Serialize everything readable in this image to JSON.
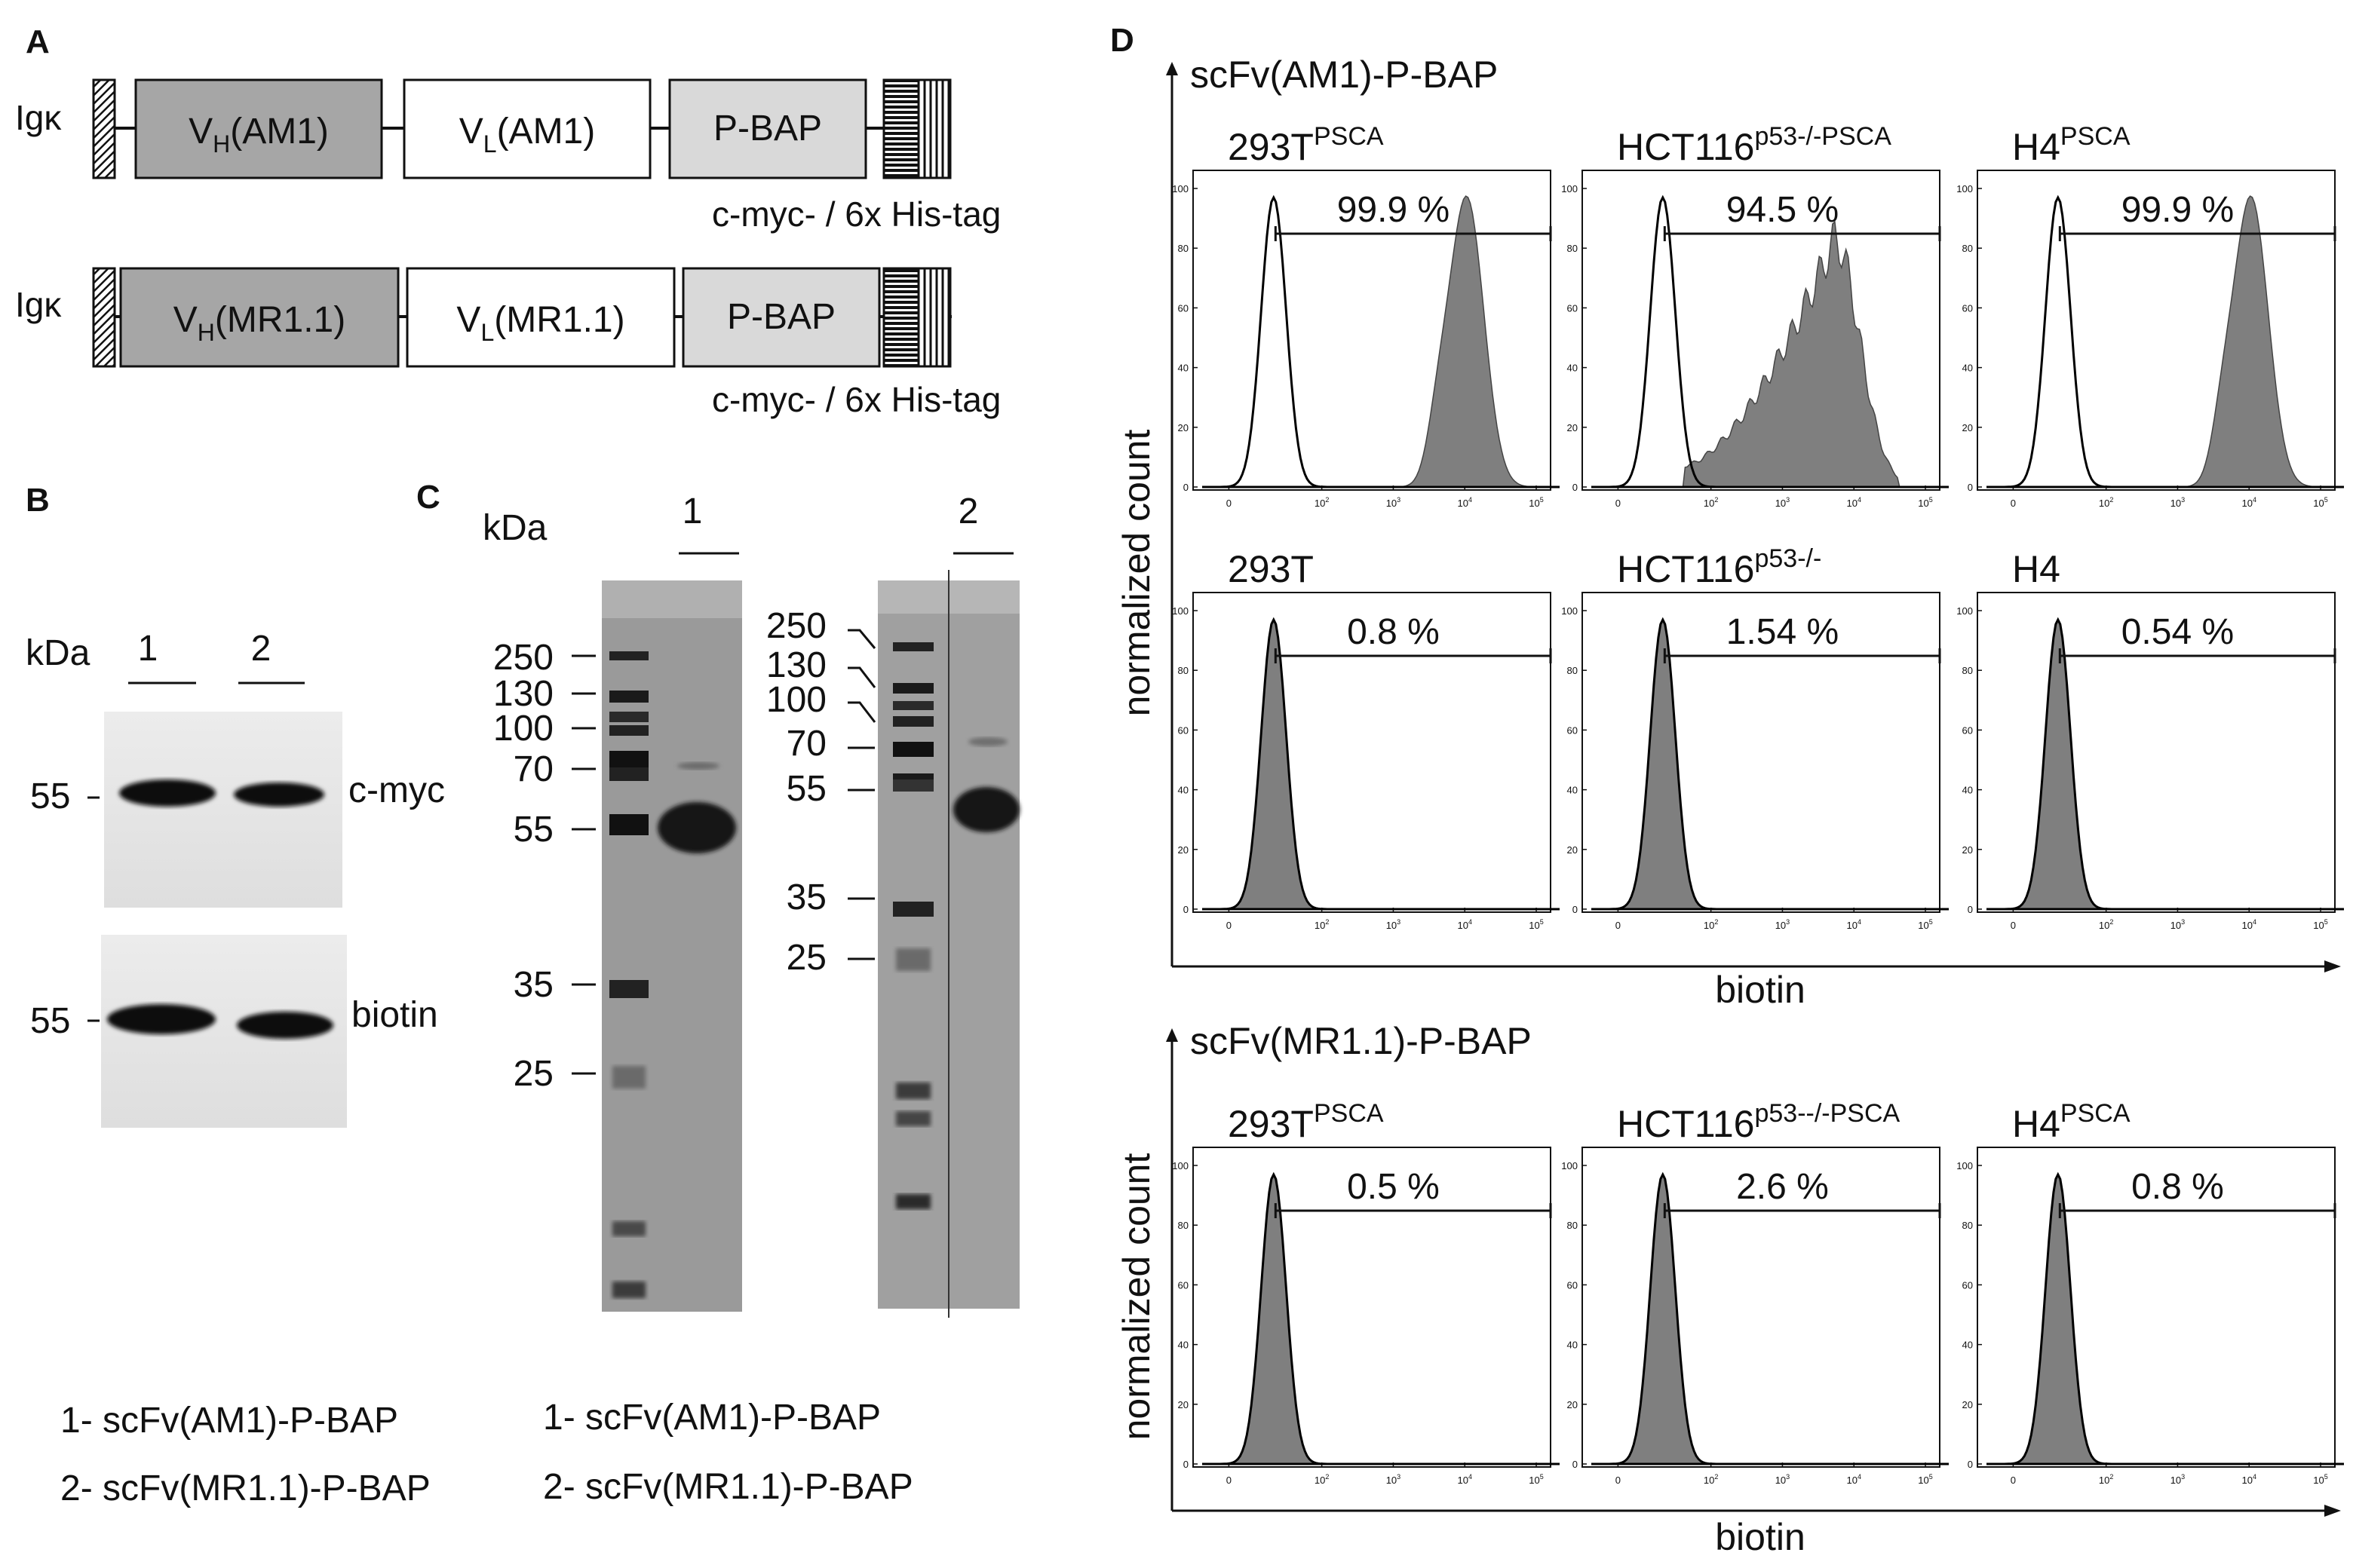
{
  "panel_letters": {
    "A": "A",
    "B": "B",
    "C": "C",
    "D": "D"
  },
  "panelA": {
    "constructs": [
      {
        "leader": "Igκ",
        "vh": {
          "main": "V",
          "sub": "H",
          "clone": "(AM1)"
        },
        "vl": {
          "main": "V",
          "sub": "L",
          "clone": "(AM1)"
        },
        "tag_domain": "P-BAP",
        "tag_label": "c-myc- / 6x His-tag"
      },
      {
        "leader": "Igκ",
        "vh": {
          "main": "V",
          "sub": "H",
          "clone": "(MR1.1)"
        },
        "vl": {
          "main": "V",
          "sub": "L",
          "clone": "(MR1.1)"
        },
        "tag_domain": "P-BAP",
        "tag_label": "c-myc- / 6x His-tag"
      }
    ],
    "colors": {
      "vh_fill": "#a6a6a6",
      "vl_fill": "#ffffff",
      "pbap_fill": "#d9d9d9"
    }
  },
  "panelB": {
    "kda_label": "kDa",
    "lanes": [
      "1",
      "2"
    ],
    "blots": [
      {
        "marker": "55",
        "label": "c-myc"
      },
      {
        "marker": "55",
        "label": "biotin"
      }
    ]
  },
  "panelC": {
    "kda_label": "kDa",
    "gel1": {
      "lane": "1",
      "markers": [
        "250",
        "130",
        "100",
        "70",
        "55",
        "35",
        "25"
      ]
    },
    "gel2": {
      "lane": "2",
      "markers": [
        "250",
        "130",
        "100",
        "70",
        "55",
        "35",
        "25"
      ]
    }
  },
  "legend": {
    "left": [
      "1- scFv(AM1)-P-BAP",
      "2- scFv(MR1.1)-P-BAP"
    ],
    "right": [
      "1- scFv(AM1)-P-BAP",
      "2- scFv(MR1.1)-P-BAP"
    ]
  },
  "panelD": {
    "ylabel": "normalized count",
    "xlabel": "biotin",
    "x_ticks": [
      "0",
      "10^2",
      "10^3",
      "10^4",
      "10^5"
    ],
    "y_ticks": [
      "0",
      "20",
      "40",
      "60",
      "80",
      "100"
    ],
    "groups": [
      {
        "title": "scFv(AM1)-P-BAP",
        "rows": [
          [
            {
              "base": "293T",
              "sup": "PSCA",
              "pct": "99.9 %",
              "kind": "pos"
            },
            {
              "base": "HCT116",
              "sup": "p53-/-PSCA",
              "pct": "94.5 %",
              "kind": "broad"
            },
            {
              "base": "H4",
              "sup": "PSCA",
              "pct": "99.9 %",
              "kind": "pos"
            }
          ],
          [
            {
              "base": "293T",
              "sup": "",
              "pct": "0.8 %",
              "kind": "neg"
            },
            {
              "base": "HCT116",
              "sup": "p53-/-",
              "pct": "1.54 %",
              "kind": "neg"
            },
            {
              "base": "H4",
              "sup": "",
              "pct": "0.54 %",
              "kind": "neg"
            }
          ]
        ]
      },
      {
        "title": "scFv(MR1.1)-P-BAP",
        "rows": [
          [
            {
              "base": "293T",
              "sup": "PSCA",
              "pct": "0.5 %",
              "kind": "neg"
            },
            {
              "base": "HCT116",
              "sup": "p53--/-PSCA",
              "pct": "2.6 %",
              "kind": "neg"
            },
            {
              "base": "H4",
              "sup": "PSCA",
              "pct": "0.8 %",
              "kind": "neg"
            }
          ]
        ]
      }
    ],
    "colors": {
      "filled": "#7f7f7f",
      "outline": "#000000"
    }
  }
}
